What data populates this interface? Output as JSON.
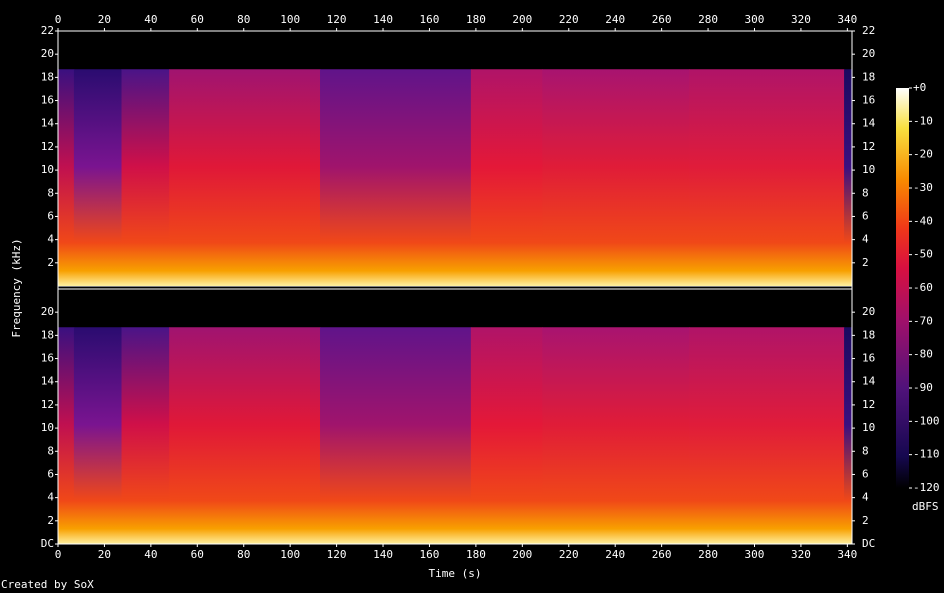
{
  "chart_data": {
    "type": "spectrogram",
    "x_label": "Time (s)",
    "y_label": "Frequency (kHz)",
    "xlim": [
      0,
      342
    ],
    "xticks": [
      0,
      20,
      40,
      60,
      80,
      100,
      120,
      140,
      160,
      180,
      200,
      220,
      240,
      260,
      280,
      300,
      320,
      340
    ],
    "ylim": [
      0,
      22
    ],
    "channels": [
      {
        "yticks": [
          2,
          4,
          6,
          8,
          10,
          12,
          14,
          16,
          18,
          20,
          22
        ]
      },
      {
        "yticks": [
          {
            "value": 0,
            "label": "DC"
          },
          2,
          4,
          6,
          8,
          10,
          12,
          14,
          16,
          18,
          20
        ]
      }
    ],
    "zlim": [
      -120,
      0
    ],
    "zticks": [
      {
        "value": 0,
        "label": "+0"
      },
      -10,
      -20,
      -30,
      -40,
      -50,
      -60,
      -70,
      -80,
      -90,
      -100,
      -110,
      -120
    ],
    "z_label": "dBFS",
    "footer": "Created by SoX"
  }
}
